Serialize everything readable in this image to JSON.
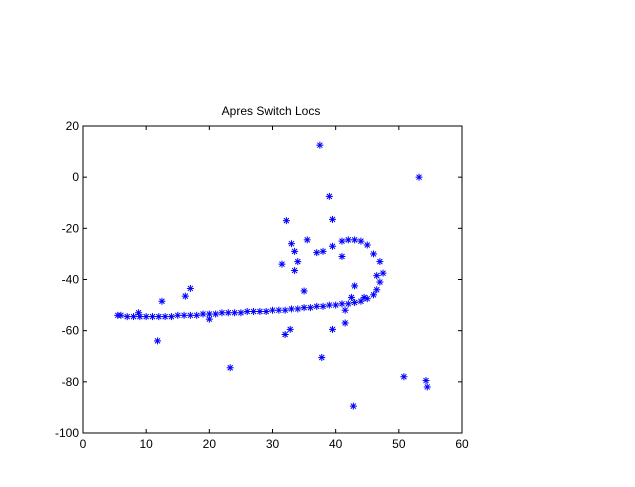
{
  "chart_data": {
    "type": "scatter",
    "title": "Apres Switch Locs",
    "xlabel": "",
    "ylabel": "",
    "xlim": [
      0,
      60
    ],
    "ylim": [
      -100,
      20
    ],
    "xticks": [
      0,
      10,
      20,
      30,
      40,
      50,
      60
    ],
    "yticks": [
      20,
      0,
      -20,
      -40,
      -60,
      -80,
      -100
    ],
    "grid": false,
    "marker": "asterisk",
    "marker_color": "#0000ff",
    "series": [
      {
        "x": [
          37.5,
          53.2,
          39.0,
          32.2,
          39.5,
          33.0,
          35.5,
          41.0,
          33.5,
          31.5,
          33.5,
          34.0,
          37.0,
          38.0,
          39.5,
          41.0,
          42.0,
          43.0,
          44.0,
          45.0,
          46.0,
          47.0,
          47.5,
          47.0,
          46.5,
          46.0,
          45.0,
          44.0,
          43.0,
          42.0,
          41.0,
          40.0,
          39.0,
          38.0,
          37.0,
          36.0,
          35.0,
          34.0,
          33.0,
          32.0,
          31.0,
          30.0,
          29.0,
          28.0,
          27.0,
          26.0,
          25.0,
          24.0,
          23.0,
          22.0,
          21.0,
          20.0,
          19.0,
          18.0,
          17.0,
          16.0,
          15.0,
          14.0,
          13.0,
          12.0,
          11.0,
          10.0,
          9.0,
          8.0,
          7.0,
          6.0,
          5.5,
          46.5,
          44.5,
          43.0,
          35.0,
          42.5,
          12.5,
          16.2,
          17.0,
          8.8,
          41.5,
          41.5,
          32.0,
          32.8,
          39.5,
          11.8,
          20.0,
          23.3,
          37.8,
          50.8,
          54.3,
          54.5,
          42.8
        ],
        "y": [
          12.5,
          0.0,
          -7.5,
          -17.0,
          -16.5,
          -26.0,
          -24.5,
          -31.0,
          -29.0,
          -34.0,
          -36.5,
          -33.0,
          -29.5,
          -29.0,
          -27.0,
          -25.0,
          -24.5,
          -24.5,
          -25.0,
          -26.5,
          -30.0,
          -33.0,
          -37.5,
          -41.0,
          -44.0,
          -46.0,
          -47.5,
          -48.5,
          -49.0,
          -49.5,
          -49.5,
          -50.0,
          -50.0,
          -50.5,
          -50.5,
          -51.0,
          -51.0,
          -51.5,
          -51.5,
          -52.0,
          -52.0,
          -52.0,
          -52.5,
          -52.5,
          -52.5,
          -52.5,
          -53.0,
          -53.0,
          -53.0,
          -53.0,
          -53.5,
          -53.5,
          -53.5,
          -54.0,
          -54.0,
          -54.0,
          -54.0,
          -54.5,
          -54.5,
          -54.5,
          -54.5,
          -54.5,
          -54.5,
          -54.5,
          -54.5,
          -54.0,
          -54.0,
          -38.5,
          -47.0,
          -42.5,
          -44.5,
          -47.0,
          -48.5,
          -46.5,
          -43.5,
          -53.0,
          -52.0,
          -57.0,
          -61.5,
          -59.5,
          -59.5,
          -64.0,
          -55.5,
          -74.5,
          -70.5,
          -78.0,
          -79.5,
          -82.0,
          -89.5
        ]
      }
    ]
  }
}
